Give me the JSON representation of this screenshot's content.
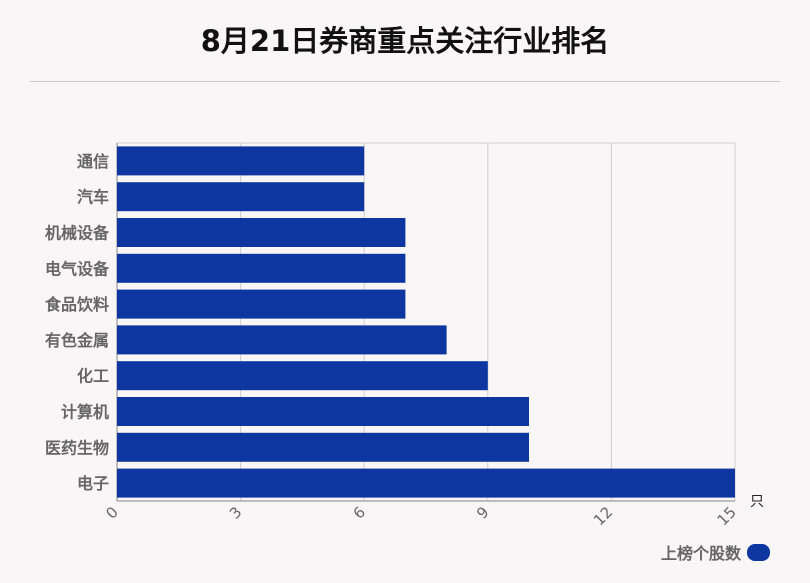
{
  "title": "8月21日券商重点关注行业排名",
  "unit": "只",
  "colors": {
    "bar": "#0d36a0",
    "grid": "#cfcfcf",
    "axis": "#9a9a9a",
    "label": "#666666"
  },
  "chart_data": {
    "type": "bar",
    "orientation": "horizontal",
    "categories": [
      "通信",
      "汽车",
      "机械设备",
      "电气设备",
      "食品饮料",
      "有色金属",
      "化工",
      "计算机",
      "医药生物",
      "电子"
    ],
    "series": [
      {
        "name": "上榜个股数",
        "values": [
          6,
          6,
          7,
          7,
          7,
          8,
          9,
          10,
          10,
          15
        ]
      }
    ],
    "xlim": [
      0,
      15
    ],
    "xticks": [
      0,
      3,
      6,
      9,
      12,
      15
    ],
    "xunit": "只",
    "grid": true,
    "legend_position": "bottom-right"
  },
  "legend": {
    "label": "上榜个股数"
  }
}
